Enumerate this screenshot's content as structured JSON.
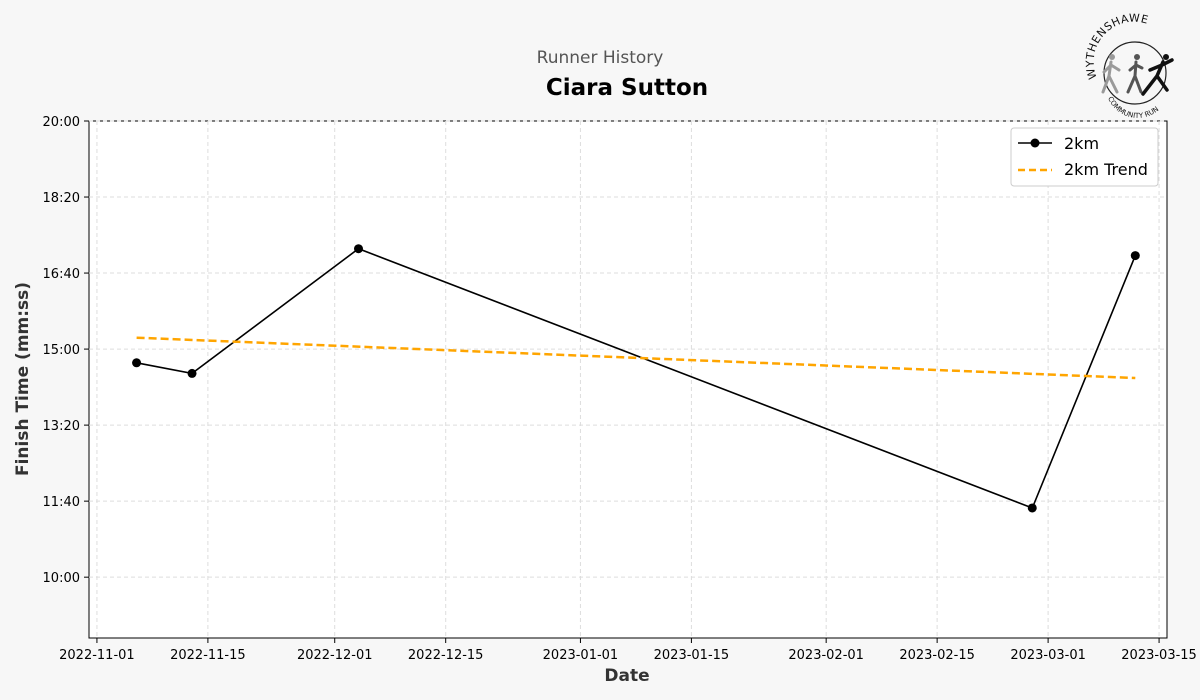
{
  "header": {
    "subtitle": "Runner History",
    "title": "Ciara Sutton"
  },
  "logo": {
    "top_text": "WYTHENSHAWE",
    "bottom_text": "COMMUNITY RUN"
  },
  "colors": {
    "series": "#000000",
    "trend": "#FFA500",
    "grid": "#dddddd",
    "background": "#f7f7f7",
    "plot_background": "#ffffff"
  },
  "chart_data": {
    "type": "line",
    "title": "Ciara Sutton",
    "subtitle": "Runner History",
    "xlabel": "Date",
    "ylabel": "Finish Time (mm:ss)",
    "x_type": "date",
    "xlim": [
      "2022-10-31",
      "2023-03-16"
    ],
    "ylim": [
      "08:40",
      "20:00"
    ],
    "x_ticks": [
      "2022-11-01",
      "2022-11-15",
      "2022-12-01",
      "2022-12-15",
      "2023-01-01",
      "2023-01-15",
      "2023-02-01",
      "2023-02-15",
      "2023-03-01",
      "2023-03-15"
    ],
    "y_ticks": [
      "10:00",
      "11:40",
      "13:20",
      "15:00",
      "16:40",
      "18:20",
      "20:00"
    ],
    "grid": true,
    "legend_position": "top-right",
    "series": [
      {
        "name": "2km",
        "style": "line-marker",
        "color": "#000000",
        "points": [
          {
            "x": "2022-11-06",
            "y": "14:42"
          },
          {
            "x": "2022-11-13",
            "y": "14:28"
          },
          {
            "x": "2022-12-04",
            "y": "17:12"
          },
          {
            "x": "2023-02-27",
            "y": "11:31"
          },
          {
            "x": "2023-03-12",
            "y": "17:03"
          }
        ]
      },
      {
        "name": "2km Trend",
        "style": "dashed",
        "color": "#FFA500",
        "points": [
          {
            "x": "2022-11-06",
            "y": "15:15"
          },
          {
            "x": "2023-03-12",
            "y": "14:22"
          }
        ]
      }
    ]
  }
}
